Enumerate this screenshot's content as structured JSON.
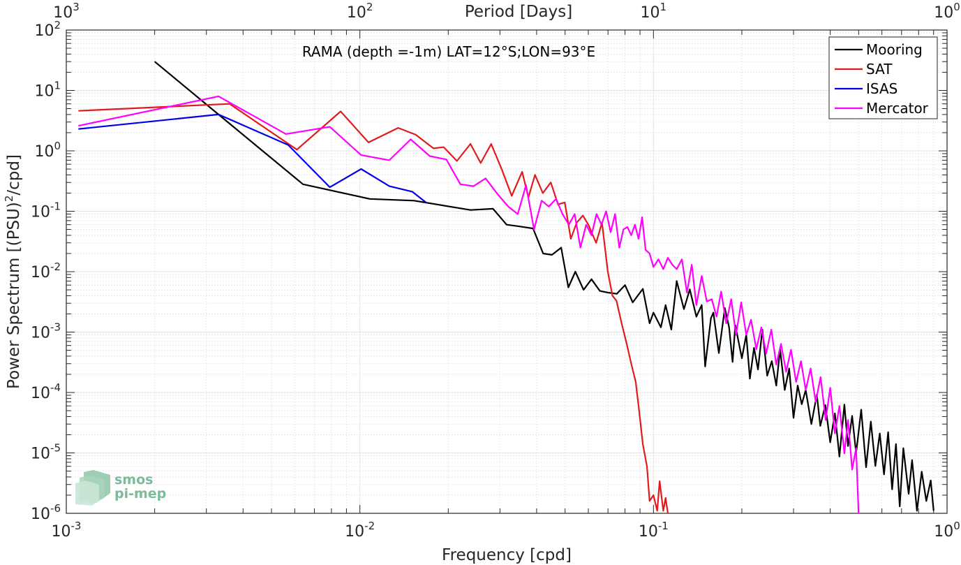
{
  "chart_data": {
    "type": "line",
    "title": "RAMA (depth =-1m) LAT=12°S;LON=93°E",
    "xlabel": "Frequency [cpd]",
    "ylabel": "Power Spectrum [(PSU)",
    "ylabel_sup": "2",
    "ylabel_tail": "/cpd]",
    "top_xlabel": "Period [Days]",
    "x_scale": "log",
    "y_scale": "log",
    "xlim": [
      0.001,
      1
    ],
    "ylim": [
      1e-06,
      100
    ],
    "grid": true,
    "legend_position": "top-right",
    "x_ticks": [
      {
        "base": "10",
        "exp": "-3",
        "value": 0.001
      },
      {
        "base": "10",
        "exp": "-2",
        "value": 0.01
      },
      {
        "base": "10",
        "exp": "-1",
        "value": 0.1
      },
      {
        "base": "10",
        "exp": "0",
        "value": 1
      }
    ],
    "top_ticks": [
      {
        "base": "10",
        "exp": "3",
        "value": 0.001
      },
      {
        "base": "10",
        "exp": "2",
        "value": 0.01
      },
      {
        "base": "10",
        "exp": "1",
        "value": 0.1
      },
      {
        "base": "10",
        "exp": "0",
        "value": 1
      }
    ],
    "y_ticks": [
      {
        "base": "10",
        "exp": "2",
        "value": 100
      },
      {
        "base": "10",
        "exp": "1",
        "value": 10
      },
      {
        "base": "10",
        "exp": "0",
        "value": 1
      },
      {
        "base": "10",
        "exp": "-1",
        "value": 0.1
      },
      {
        "base": "10",
        "exp": "-2",
        "value": 0.01
      },
      {
        "base": "10",
        "exp": "-3",
        "value": 0.001
      },
      {
        "base": "10",
        "exp": "-4",
        "value": 0.0001
      },
      {
        "base": "10",
        "exp": "-5",
        "value": 1e-05
      },
      {
        "base": "10",
        "exp": "-6",
        "value": 1e-06
      }
    ],
    "series": [
      {
        "name": "Mooring",
        "color": "#000000",
        "x": [
          0.002,
          0.0033,
          0.0064,
          0.0108,
          0.0153,
          0.0238,
          0.0284,
          0.0316,
          0.0351,
          0.0389,
          0.0421,
          0.0451,
          0.0485,
          0.0513,
          0.0542,
          0.0578,
          0.0615,
          0.0657,
          0.07,
          0.075,
          0.08,
          0.085,
          0.092,
          0.097,
          0.1,
          0.106,
          0.11,
          0.115,
          0.12,
          0.127,
          0.133,
          0.14,
          0.146,
          0.15,
          0.157,
          0.16,
          0.167,
          0.175,
          0.181,
          0.186,
          0.19,
          0.2,
          0.207,
          0.213,
          0.22,
          0.227,
          0.235,
          0.244,
          0.253,
          0.262,
          0.27,
          0.28,
          0.29,
          0.3,
          0.31,
          0.32,
          0.33,
          0.345,
          0.36,
          0.37,
          0.385,
          0.4,
          0.415,
          0.43,
          0.447,
          0.46,
          0.475,
          0.49,
          0.51,
          0.53,
          0.55,
          0.57,
          0.59,
          0.61,
          0.63,
          0.65,
          0.67,
          0.69,
          0.71,
          0.74,
          0.76,
          0.79,
          0.82,
          0.85,
          0.88,
          0.9
        ],
        "y": [
          30,
          4,
          0.28,
          0.16,
          0.15,
          0.105,
          0.11,
          0.06,
          0.056,
          0.052,
          0.02,
          0.019,
          0.025,
          0.0055,
          0.01,
          0.005,
          0.0075,
          0.0048,
          0.0045,
          0.0043,
          0.006,
          0.0031,
          0.0052,
          0.0014,
          0.0021,
          0.0012,
          0.0028,
          0.0011,
          0.007,
          0.0024,
          0.0051,
          0.0018,
          0.0028,
          0.00027,
          0.0017,
          0.0021,
          0.00045,
          0.0025,
          0.0012,
          0.00032,
          0.0013,
          0.00037,
          0.0009,
          0.00017,
          0.00055,
          0.00024,
          0.0011,
          0.00019,
          0.00033,
          0.00013,
          0.00052,
          0.00011,
          0.00025,
          3.8e-05,
          0.00013,
          6.4e-05,
          0.00011,
          3e-05,
          9.2e-05,
          2.8e-05,
          6.2e-05,
          1.5e-05,
          4.5e-05,
          8.7e-06,
          6.3e-05,
          1.3e-05,
          4.1e-05,
          9.9e-06,
          5.2e-05,
          5.8e-06,
          3.3e-05,
          6.1e-06,
          2.1e-05,
          4.4e-06,
          2.2e-05,
          2.5e-06,
          1.4e-05,
          1.3e-06,
          1.2e-05,
          2.1e-06,
          7.6e-06,
          1.1e-06,
          4.9e-06,
          1.6e-06,
          3.5e-06,
          1.1e-06
        ]
      },
      {
        "name": "SAT",
        "color": "#e31a1c",
        "x": [
          0.0011,
          0.0036,
          0.0061,
          0.0086,
          0.0107,
          0.0135,
          0.0155,
          0.0178,
          0.0193,
          0.0214,
          0.0238,
          0.0258,
          0.028,
          0.0305,
          0.0329,
          0.0357,
          0.0375,
          0.0395,
          0.042,
          0.0447,
          0.0473,
          0.0499,
          0.0523,
          0.0548,
          0.0575,
          0.06,
          0.0638,
          0.0668,
          0.0699,
          0.0725,
          0.0748,
          0.0779,
          0.081,
          0.084,
          0.087,
          0.089,
          0.092,
          0.095,
          0.097,
          0.1,
          0.103,
          0.105,
          0.108,
          0.11,
          0.112,
          0.114
        ],
        "y": [
          4.6,
          6,
          1.05,
          4.5,
          1.38,
          2.4,
          1.85,
          1.1,
          1.15,
          0.68,
          1.3,
          0.63,
          1.3,
          0.48,
          0.18,
          0.45,
          0.17,
          0.4,
          0.2,
          0.3,
          0.13,
          0.14,
          0.035,
          0.065,
          0.085,
          0.06,
          0.03,
          0.065,
          0.01,
          0.004,
          0.0033,
          0.0014,
          0.00065,
          0.0003,
          0.00015,
          6e-05,
          1.4e-05,
          6e-06,
          1.6e-06,
          2e-06,
          1.1e-06,
          3.4e-06,
          1.1e-06,
          1.8e-06,
          1e-06,
          8e-07
        ]
      },
      {
        "name": "ISAS",
        "color": "#0000e8",
        "x": [
          0.0011,
          0.0033,
          0.0057,
          0.0079,
          0.0101,
          0.0126,
          0.0151,
          0.0168
        ],
        "y": [
          2.3,
          4,
          1.25,
          0.25,
          0.5,
          0.26,
          0.21,
          0.14
        ]
      },
      {
        "name": "Mercator",
        "color": "#ff00ff",
        "x": [
          0.0011,
          0.0033,
          0.0056,
          0.0079,
          0.0101,
          0.0126,
          0.0149,
          0.0173,
          0.0197,
          0.022,
          0.0244,
          0.0268,
          0.0295,
          0.032,
          0.0345,
          0.0368,
          0.0392,
          0.0416,
          0.044,
          0.0466,
          0.049,
          0.0515,
          0.0539,
          0.0564,
          0.059,
          0.0615,
          0.064,
          0.0665,
          0.069,
          0.0715,
          0.074,
          0.0765,
          0.079,
          0.0815,
          0.084,
          0.0865,
          0.089,
          0.0915,
          0.094,
          0.097,
          0.1,
          0.104,
          0.108,
          0.112,
          0.116,
          0.12,
          0.125,
          0.13,
          0.135,
          0.14,
          0.146,
          0.152,
          0.158,
          0.164,
          0.17,
          0.177,
          0.184,
          0.191,
          0.199,
          0.207,
          0.215,
          0.224,
          0.233,
          0.242,
          0.252,
          0.262,
          0.272,
          0.283,
          0.294,
          0.306,
          0.318,
          0.33,
          0.343,
          0.357,
          0.371,
          0.386,
          0.4,
          0.415,
          0.43,
          0.447,
          0.46,
          0.475,
          0.49,
          0.5
        ],
        "y": [
          2.6,
          8,
          1.9,
          2.5,
          0.85,
          0.7,
          1.55,
          0.82,
          0.72,
          0.28,
          0.26,
          0.35,
          0.19,
          0.12,
          0.09,
          0.27,
          0.05,
          0.15,
          0.12,
          0.16,
          0.09,
          0.06,
          0.09,
          0.025,
          0.06,
          0.04,
          0.09,
          0.06,
          0.1,
          0.045,
          0.09,
          0.025,
          0.05,
          0.055,
          0.04,
          0.06,
          0.035,
          0.08,
          0.023,
          0.02,
          0.012,
          0.016,
          0.011,
          0.017,
          0.013,
          0.011,
          0.016,
          0.0045,
          0.013,
          0.0028,
          0.0085,
          0.0032,
          0.0035,
          0.0018,
          0.0047,
          0.0014,
          0.0035,
          0.0009,
          0.0031,
          0.0009,
          0.0016,
          0.00052,
          0.0012,
          0.00044,
          0.0011,
          0.00029,
          0.00064,
          0.00022,
          0.00051,
          0.00015,
          0.00033,
          0.00011,
          0.00025,
          7e-05,
          0.00018,
          3.5e-05,
          0.00012,
          2.1e-05,
          6e-05,
          9.8e-06,
          3.5e-05,
          5.3e-06,
          1.2e-05,
          9e-07
        ]
      }
    ]
  },
  "logo": {
    "line1": "smos",
    "line2": "pi-mep"
  },
  "style": {
    "grid_color": "#e3e3e3",
    "axis_color": "#262626",
    "logo_color": "#7fb99a"
  }
}
